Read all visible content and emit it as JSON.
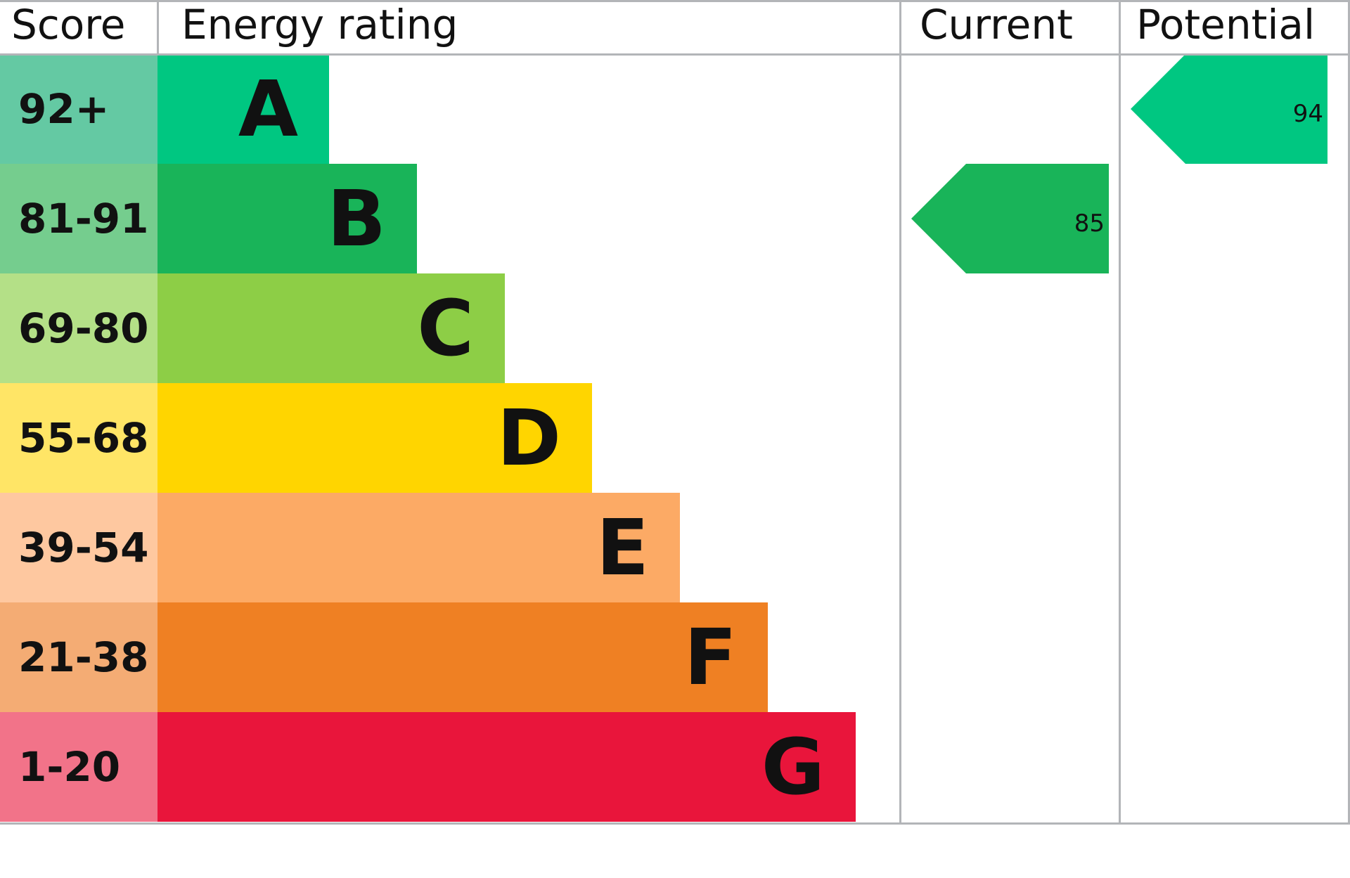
{
  "chart_data": {
    "type": "table",
    "headers": {
      "score": "Score",
      "rating": "Energy rating",
      "current": "Current",
      "potential": "Potential"
    },
    "bands": [
      {
        "score": "92+",
        "letter": "A",
        "color": "#00c781",
        "score_bg": "#64c9a3"
      },
      {
        "score": "81-91",
        "letter": "B",
        "color": "#19b459",
        "score_bg": "#75cd8e"
      },
      {
        "score": "69-80",
        "letter": "C",
        "color": "#8dce46",
        "score_bg": "#b4e087"
      },
      {
        "score": "55-68",
        "letter": "D",
        "color": "#ffd500",
        "score_bg": "#ffe566"
      },
      {
        "score": "39-54",
        "letter": "E",
        "color": "#fcaa65",
        "score_bg": "#fec8a0"
      },
      {
        "score": "21-38",
        "letter": "F",
        "color": "#ef8023",
        "score_bg": "#f4ac74"
      },
      {
        "score": "1-20",
        "letter": "G",
        "color": "#e9153b",
        "score_bg": "#f27389"
      }
    ],
    "current": {
      "value": "85",
      "band": "B",
      "color": "#19b459"
    },
    "potential": {
      "value": "94",
      "band": "A",
      "color": "#00c781"
    }
  }
}
